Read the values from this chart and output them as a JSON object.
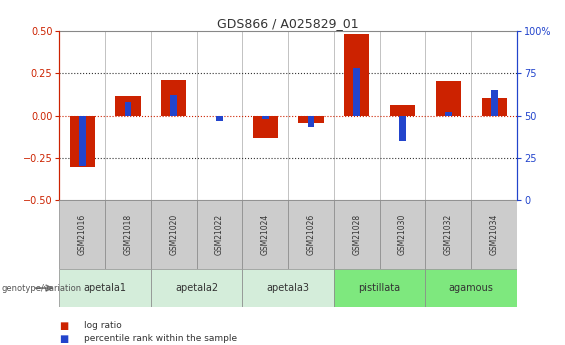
{
  "title": "GDS866 / A025829_01",
  "samples": [
    "GSM21016",
    "GSM21018",
    "GSM21020",
    "GSM21022",
    "GSM21024",
    "GSM21026",
    "GSM21028",
    "GSM21030",
    "GSM21032",
    "GSM21034"
  ],
  "log_ratio": [
    -0.305,
    0.115,
    0.21,
    0.0,
    -0.13,
    -0.045,
    0.485,
    0.065,
    0.205,
    0.105
  ],
  "percentile_rank": [
    20,
    58,
    62,
    47,
    48,
    43,
    78,
    35,
    52,
    65
  ],
  "groups": [
    {
      "label": "apetala1",
      "indices": [
        0,
        1
      ],
      "color": "#d4edda"
    },
    {
      "label": "apetala2",
      "indices": [
        2,
        3
      ],
      "color": "#d4edda"
    },
    {
      "label": "apetala3",
      "indices": [
        4,
        5
      ],
      "color": "#d4edda"
    },
    {
      "label": "pistillata",
      "indices": [
        6,
        7
      ],
      "color": "#7ee87e"
    },
    {
      "label": "agamous",
      "indices": [
        8,
        9
      ],
      "color": "#7ee87e"
    }
  ],
  "ylim_left": [
    -0.5,
    0.5
  ],
  "ylim_right": [
    0,
    100
  ],
  "yticks_left": [
    -0.5,
    -0.25,
    0.0,
    0.25,
    0.5
  ],
  "yticks_right": [
    0,
    25,
    50,
    75,
    100
  ],
  "bar_color_red": "#cc2200",
  "bar_color_blue": "#2244cc",
  "dotted_line_color": "#333333",
  "zero_line_color": "#cc2200",
  "left_axis_color": "#cc2200",
  "right_axis_color": "#2244cc",
  "bar_width": 0.55,
  "blue_bar_width": 0.15,
  "sample_box_color": "#cccccc",
  "sample_box_edge": "#888888",
  "fig_bg": "#ffffff"
}
